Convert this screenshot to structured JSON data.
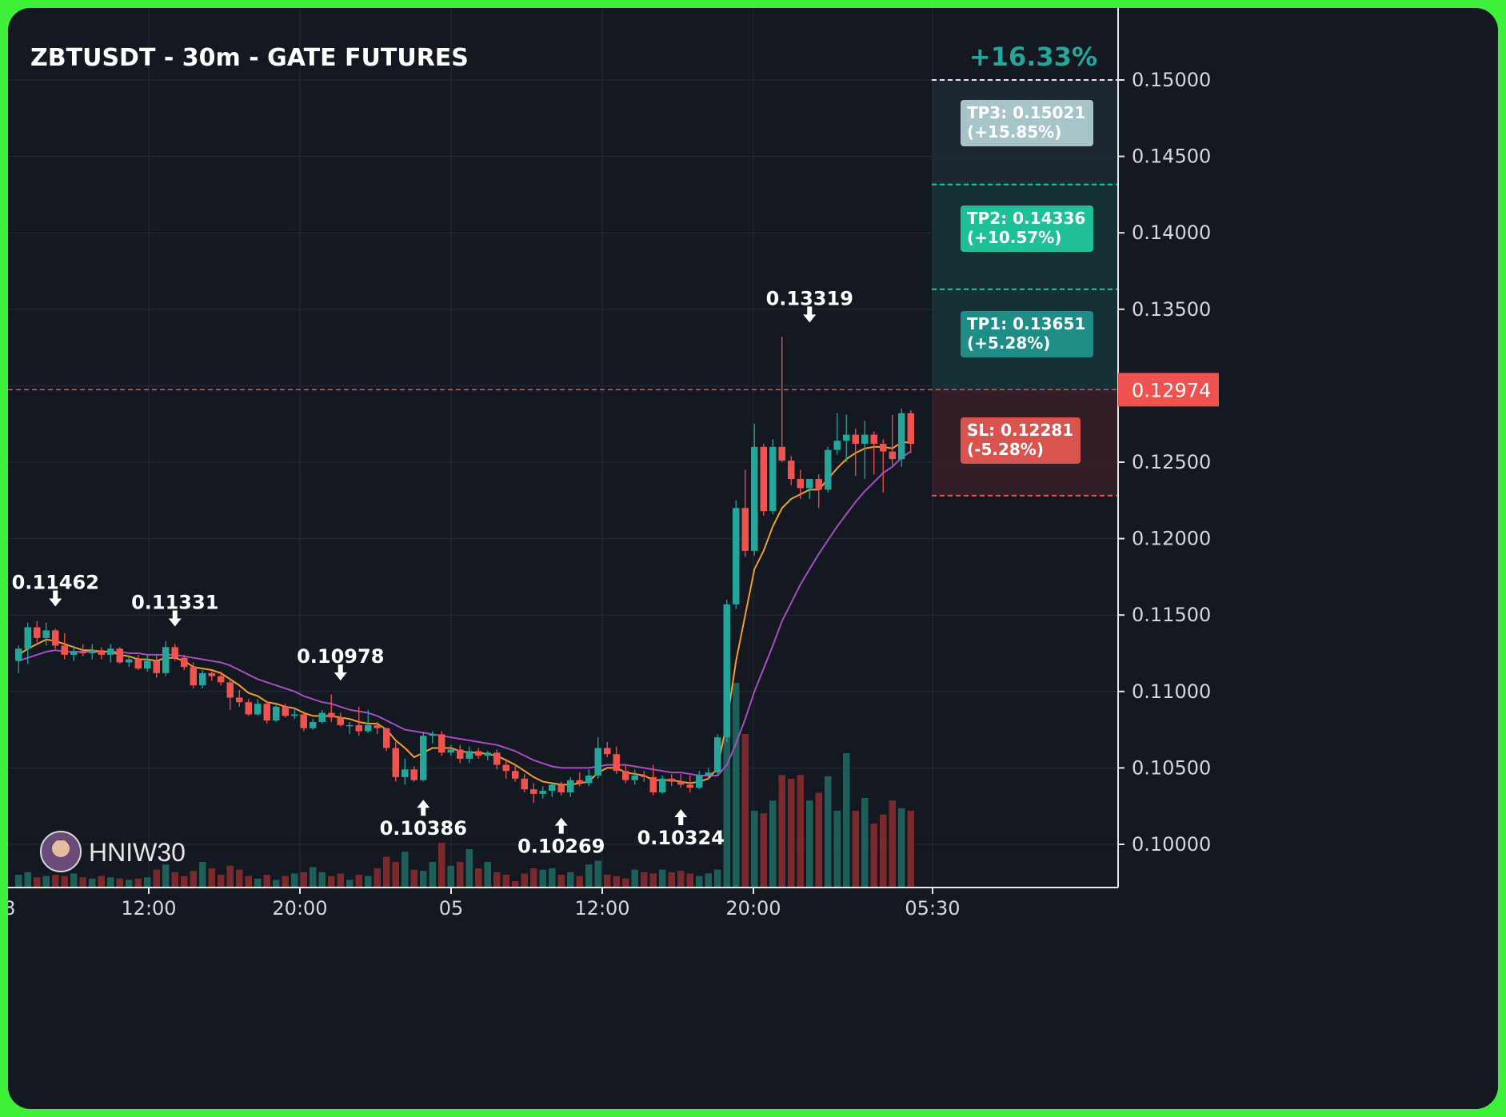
{
  "chart_title": "ZBTUSDT - 30m - GATE FUTURES",
  "watermark": "HNIW30",
  "colors": {
    "frame": "#3ef03a",
    "background": "#131821",
    "up": "#26a69a",
    "down": "#ef5350",
    "ma_fast": "#f0a030",
    "ma_slow": "#a84ec4",
    "grid": "#252c38",
    "axis_text": "#d4d8de"
  },
  "chart_data": {
    "type": "candlestick",
    "title": "ZBTUSDT - 30m - GATE FUTURES",
    "x_tick_labels": [
      "12:00",
      "20:00",
      "05",
      "12:00",
      "20:00",
      "05:30"
    ],
    "x_first_partial_label": "8",
    "y_tick_labels": [
      "0.15000",
      "0.14500",
      "0.14000",
      "0.13500",
      "0.12500",
      "0.12000",
      "0.11500",
      "0.11000",
      "0.10500",
      "0.10000"
    ],
    "ylim": [
      0.0972,
      0.1537
    ],
    "current_price": {
      "label": "0.12974",
      "value": 0.12974
    },
    "target_zone": {
      "top_label": "+16.33%",
      "entry": 0.12974,
      "top": 0.15,
      "levels": [
        {
          "name": "TP3",
          "label": "TP3: 0.15021",
          "pct": "(+15.85%)",
          "value": 0.15021,
          "color": "#e0e0e0",
          "box": "#a7c4c8"
        },
        {
          "name": "TP2",
          "label": "TP2: 0.14336",
          "pct": "(+10.57%)",
          "value": 0.14336,
          "color": "#21c9a0",
          "box": "#1fbf98"
        },
        {
          "name": "TP1",
          "label": "TP1: 0.13651",
          "pct": "(+5.28%)",
          "value": 0.13651,
          "color": "#21c9a0",
          "box": "#1f8c86"
        },
        {
          "name": "SL",
          "label": "SL: 0.12281",
          "pct": "(-5.28%)",
          "value": 0.12281,
          "color": "#ef5350",
          "box": "#d9534f"
        }
      ]
    },
    "annotations": [
      {
        "text": "0.11462",
        "value": 0.11462,
        "direction": "down"
      },
      {
        "text": "0.11331",
        "value": 0.11331,
        "direction": "down"
      },
      {
        "text": "0.10978",
        "value": 0.10978,
        "direction": "down"
      },
      {
        "text": "0.10386",
        "value": 0.10386,
        "direction": "up"
      },
      {
        "text": "0.10269",
        "value": 0.10269,
        "direction": "up"
      },
      {
        "text": "0.10324",
        "value": 0.10324,
        "direction": "up"
      },
      {
        "text": "0.13319",
        "value": 0.13319,
        "direction": "down"
      }
    ],
    "candles": [
      [
        0.112,
        0.113,
        0.1112,
        0.1128
      ],
      [
        0.1128,
        0.1145,
        0.1118,
        0.1142
      ],
      [
        0.1142,
        0.1146,
        0.1132,
        0.1135
      ],
      [
        0.1135,
        0.1145,
        0.113,
        0.114
      ],
      [
        0.114,
        0.1141,
        0.1128,
        0.113
      ],
      [
        0.113,
        0.1138,
        0.1121,
        0.1124
      ],
      [
        0.1124,
        0.113,
        0.112,
        0.1126
      ],
      [
        0.1126,
        0.1131,
        0.1123,
        0.1125
      ],
      [
        0.1125,
        0.1131,
        0.1121,
        0.1127
      ],
      [
        0.1127,
        0.1129,
        0.1121,
        0.1124
      ],
      [
        0.1124,
        0.1131,
        0.1119,
        0.1128
      ],
      [
        0.1128,
        0.1129,
        0.1118,
        0.1119
      ],
      [
        0.1119,
        0.1123,
        0.1116,
        0.1121
      ],
      [
        0.1121,
        0.1124,
        0.1114,
        0.1115
      ],
      [
        0.1115,
        0.1124,
        0.1113,
        0.112
      ],
      [
        0.112,
        0.1124,
        0.1109,
        0.1112
      ],
      [
        0.1112,
        0.1133,
        0.111,
        0.1129
      ],
      [
        0.1129,
        0.1131,
        0.112,
        0.1122
      ],
      [
        0.1122,
        0.1124,
        0.1114,
        0.1116
      ],
      [
        0.1116,
        0.1119,
        0.1102,
        0.1104
      ],
      [
        0.1104,
        0.1114,
        0.1102,
        0.1112
      ],
      [
        0.1112,
        0.1113,
        0.1107,
        0.111
      ],
      [
        0.111,
        0.1113,
        0.1104,
        0.1106
      ],
      [
        0.1106,
        0.1109,
        0.1088,
        0.1096
      ],
      [
        0.1096,
        0.1101,
        0.109,
        0.1093
      ],
      [
        0.1093,
        0.1095,
        0.1084,
        0.1085
      ],
      [
        0.1085,
        0.1095,
        0.1084,
        0.1092
      ],
      [
        0.1092,
        0.1094,
        0.1079,
        0.1081
      ],
      [
        0.1081,
        0.1092,
        0.108,
        0.109
      ],
      [
        0.109,
        0.1092,
        0.1083,
        0.1084
      ],
      [
        0.1084,
        0.1089,
        0.1082,
        0.1085
      ],
      [
        0.1085,
        0.1087,
        0.1074,
        0.1076
      ],
      [
        0.1076,
        0.1082,
        0.1075,
        0.108
      ],
      [
        0.108,
        0.1088,
        0.1079,
        0.1086
      ],
      [
        0.1086,
        0.1098,
        0.108,
        0.1083
      ],
      [
        0.1083,
        0.1086,
        0.1077,
        0.1078
      ],
      [
        0.1078,
        0.108,
        0.1072,
        0.1078
      ],
      [
        0.1078,
        0.109,
        0.1071,
        0.1074
      ],
      [
        0.1074,
        0.1088,
        0.1073,
        0.1078
      ],
      [
        0.1078,
        0.108,
        0.1072,
        0.1076
      ],
      [
        0.1076,
        0.1076,
        0.1061,
        0.1063
      ],
      [
        0.1063,
        0.1067,
        0.1041,
        0.1044
      ],
      [
        0.1044,
        0.1056,
        0.1039,
        0.1049
      ],
      [
        0.1049,
        0.1051,
        0.1041,
        0.1042
      ],
      [
        0.1042,
        0.1073,
        0.1041,
        0.1071
      ],
      [
        0.1071,
        0.1074,
        0.1066,
        0.1072
      ],
      [
        0.1072,
        0.1074,
        0.1058,
        0.106
      ],
      [
        0.106,
        0.1065,
        0.1058,
        0.1062
      ],
      [
        0.1062,
        0.1065,
        0.1053,
        0.1056
      ],
      [
        0.1056,
        0.1064,
        0.1053,
        0.1061
      ],
      [
        0.1061,
        0.1063,
        0.1056,
        0.1058
      ],
      [
        0.1058,
        0.1061,
        0.1055,
        0.106
      ],
      [
        0.106,
        0.1062,
        0.1049,
        0.1052
      ],
      [
        0.1052,
        0.1056,
        0.1043,
        0.1048
      ],
      [
        0.1048,
        0.1052,
        0.1041,
        0.1043
      ],
      [
        0.1043,
        0.1046,
        0.1034,
        0.1036
      ],
      [
        0.1036,
        0.104,
        0.1027,
        0.1033
      ],
      [
        0.1033,
        0.1038,
        0.103,
        0.1035
      ],
      [
        0.1035,
        0.104,
        0.1031,
        0.1039
      ],
      [
        0.1039,
        0.1041,
        0.1032,
        0.1034
      ],
      [
        0.1034,
        0.1044,
        0.1031,
        0.1042
      ],
      [
        0.1042,
        0.1047,
        0.1038,
        0.104
      ],
      [
        0.104,
        0.1049,
        0.1038,
        0.1045
      ],
      [
        0.1045,
        0.107,
        0.1043,
        0.1063
      ],
      [
        0.1063,
        0.1067,
        0.1057,
        0.1059
      ],
      [
        0.1059,
        0.1064,
        0.1046,
        0.1048
      ],
      [
        0.1048,
        0.1052,
        0.104,
        0.1042
      ],
      [
        0.1042,
        0.1049,
        0.1039,
        0.1045
      ],
      [
        0.1045,
        0.1048,
        0.1041,
        0.1044
      ],
      [
        0.1044,
        0.1052,
        0.1032,
        0.1034
      ],
      [
        0.1034,
        0.1045,
        0.1033,
        0.1043
      ],
      [
        0.1043,
        0.1046,
        0.1038,
        0.1041
      ],
      [
        0.1041,
        0.1046,
        0.1037,
        0.1039
      ],
      [
        0.1039,
        0.1045,
        0.1034,
        0.1037
      ],
      [
        0.1037,
        0.1048,
        0.1036,
        0.1045
      ],
      [
        0.1045,
        0.105,
        0.1043,
        0.1047
      ],
      [
        0.1047,
        0.1072,
        0.1045,
        0.107
      ],
      [
        0.107,
        0.116,
        0.1067,
        0.1157
      ],
      [
        0.1157,
        0.1225,
        0.1154,
        0.122
      ],
      [
        0.122,
        0.1245,
        0.1188,
        0.1192
      ],
      [
        0.1192,
        0.1275,
        0.1189,
        0.126
      ],
      [
        0.126,
        0.1262,
        0.1215,
        0.1218
      ],
      [
        0.1218,
        0.1265,
        0.1216,
        0.126
      ],
      [
        0.126,
        0.1332,
        0.125,
        0.1251
      ],
      [
        0.1251,
        0.1254,
        0.1235,
        0.1239
      ],
      [
        0.1239,
        0.1245,
        0.1226,
        0.1233
      ],
      [
        0.1233,
        0.1239,
        0.1226,
        0.1239
      ],
      [
        0.1239,
        0.1242,
        0.122,
        0.1232
      ],
      [
        0.1232,
        0.126,
        0.123,
        0.1258
      ],
      [
        0.1258,
        0.1282,
        0.1255,
        0.1264
      ],
      [
        0.1264,
        0.1281,
        0.125,
        0.1268
      ],
      [
        0.1268,
        0.1272,
        0.1241,
        0.1262
      ],
      [
        0.1262,
        0.1277,
        0.1239,
        0.1268
      ],
      [
        0.1268,
        0.127,
        0.1242,
        0.1262
      ],
      [
        0.1262,
        0.1265,
        0.123,
        0.1257
      ],
      [
        0.1257,
        0.1281,
        0.1248,
        0.1252
      ],
      [
        0.1252,
        0.1285,
        0.1247,
        0.1282
      ],
      [
        0.1282,
        0.1284,
        0.1256,
        0.1262
      ]
    ],
    "ma_fast": [
      0.1124,
      0.1128,
      0.1131,
      0.1134,
      0.1133,
      0.1131,
      0.1129,
      0.1127,
      0.1127,
      0.1126,
      0.1126,
      0.1124,
      0.1123,
      0.1121,
      0.1121,
      0.112,
      0.1122,
      0.1122,
      0.112,
      0.1116,
      0.1115,
      0.1114,
      0.1112,
      0.1108,
      0.1104,
      0.1099,
      0.1097,
      0.1093,
      0.1092,
      0.109,
      0.1089,
      0.1086,
      0.1084,
      0.1084,
      0.1084,
      0.1083,
      0.1082,
      0.108,
      0.1079,
      0.1079,
      0.1075,
      0.1068,
      0.1063,
      0.1057,
      0.106,
      0.1063,
      0.1063,
      0.1063,
      0.1061,
      0.106,
      0.106,
      0.1059,
      0.1058,
      0.1055,
      0.1052,
      0.1048,
      0.1044,
      0.1041,
      0.104,
      0.1039,
      0.1039,
      0.104,
      0.1041,
      0.1047,
      0.105,
      0.105,
      0.1047,
      0.1046,
      0.1045,
      0.1042,
      0.1042,
      0.1042,
      0.1041,
      0.104,
      0.1041,
      0.1043,
      0.105,
      0.108,
      0.112,
      0.115,
      0.118,
      0.1192,
      0.1208,
      0.122,
      0.1226,
      0.1229,
      0.1232,
      0.1232,
      0.1239,
      0.1246,
      0.1252,
      0.1256,
      0.1259,
      0.126,
      0.126,
      0.1259,
      0.1263,
      0.1263
    ],
    "ma_slow": [
      0.112,
      0.1122,
      0.1124,
      0.1126,
      0.1127,
      0.1126,
      0.1126,
      0.1126,
      0.1126,
      0.1126,
      0.1126,
      0.1126,
      0.1125,
      0.1125,
      0.1124,
      0.1124,
      0.1124,
      0.1124,
      0.1123,
      0.1122,
      0.1121,
      0.112,
      0.1119,
      0.1117,
      0.1114,
      0.1111,
      0.1108,
      0.1106,
      0.1104,
      0.1102,
      0.11,
      0.1097,
      0.1095,
      0.1093,
      0.1092,
      0.109,
      0.1088,
      0.1087,
      0.1086,
      0.1084,
      0.1081,
      0.1078,
      0.1075,
      0.1074,
      0.1073,
      0.1072,
      0.1071,
      0.107,
      0.1069,
      0.1068,
      0.1067,
      0.1066,
      0.1065,
      0.1063,
      0.1061,
      0.1058,
      0.1055,
      0.1053,
      0.1051,
      0.105,
      0.105,
      0.105,
      0.105,
      0.1051,
      0.1052,
      0.1052,
      0.1052,
      0.1051,
      0.105,
      0.1049,
      0.1048,
      0.1047,
      0.1047,
      0.1046,
      0.1045,
      0.1045,
      0.1045,
      0.1052,
      0.1066,
      0.1082,
      0.11,
      0.1115,
      0.113,
      0.1146,
      0.1158,
      0.117,
      0.118,
      0.119,
      0.1199,
      0.1208,
      0.1216,
      0.1224,
      0.1231,
      0.1237,
      0.1243,
      0.1247,
      0.1253,
      0.1257
    ],
    "volume_rel": [
      0.1,
      0.12,
      0.08,
      0.09,
      0.1,
      0.09,
      0.11,
      0.08,
      0.07,
      0.09,
      0.08,
      0.07,
      0.06,
      0.07,
      0.08,
      0.14,
      0.18,
      0.12,
      0.09,
      0.13,
      0.2,
      0.15,
      0.1,
      0.17,
      0.14,
      0.09,
      0.07,
      0.1,
      0.06,
      0.09,
      0.11,
      0.12,
      0.16,
      0.12,
      0.09,
      0.11,
      0.06,
      0.1,
      0.09,
      0.15,
      0.24,
      0.2,
      0.28,
      0.14,
      0.13,
      0.2,
      0.35,
      0.17,
      0.2,
      0.3,
      0.15,
      0.2,
      0.12,
      0.1,
      0.05,
      0.11,
      0.15,
      0.14,
      0.15,
      0.1,
      0.12,
      0.09,
      0.18,
      0.21,
      0.1,
      0.09,
      0.07,
      0.14,
      0.12,
      0.11,
      0.14,
      0.12,
      0.13,
      0.11,
      0.09,
      0.11,
      0.14,
      1.5,
      1.6,
      1.2,
      0.6,
      0.58,
      0.68,
      0.88,
      0.85,
      0.88,
      0.68,
      0.74,
      0.87,
      0.6,
      1.05,
      0.6,
      0.7,
      0.5,
      0.57,
      0.68,
      0.62,
      0.6
    ]
  }
}
